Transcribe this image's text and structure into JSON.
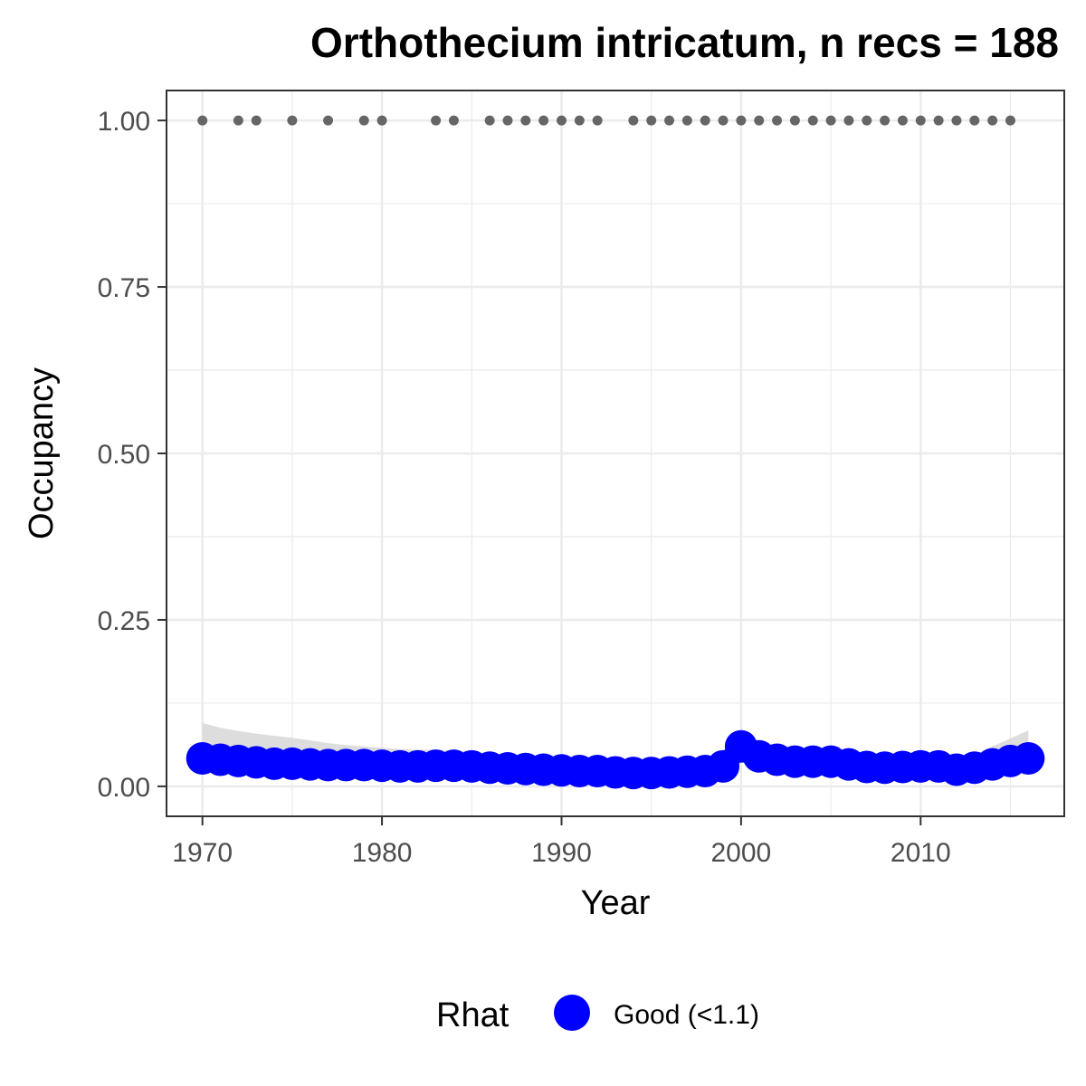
{
  "chart_data": {
    "type": "line",
    "title": "Orthothecium intricatum, n recs = 188",
    "xlabel": "Year",
    "ylabel": "Occupancy",
    "xlim": [
      1968,
      2018
    ],
    "ylim": [
      -0.045,
      1.045
    ],
    "x_ticks": [
      1970,
      1980,
      1990,
      2000,
      2010
    ],
    "x_tick_labels": [
      "1970",
      "1980",
      "1990",
      "2000",
      "2010"
    ],
    "y_ticks": [
      0,
      0.25,
      0.5,
      0.75,
      1.0
    ],
    "y_tick_labels": [
      "0.00",
      "0.25",
      "0.50",
      "0.75",
      "1.00"
    ],
    "grid": true,
    "legend": {
      "title": "Rhat",
      "position": "bottom",
      "entries": [
        {
          "label": "Good (<1.1)",
          "color": "#0000ff"
        }
      ]
    },
    "colors": {
      "series": "#0000ff",
      "ribbon": "#d9d9d9",
      "records": "#666666",
      "grid": "#ebebeb",
      "panel_border": "#333333"
    },
    "record_years": [
      1970,
      1972,
      1973,
      1975,
      1977,
      1979,
      1980,
      1983,
      1984,
      1986,
      1987,
      1988,
      1989,
      1990,
      1991,
      1992,
      1994,
      1995,
      1996,
      1997,
      1998,
      1999,
      2000,
      2001,
      2002,
      2003,
      2004,
      2005,
      2006,
      2007,
      2008,
      2009,
      2010,
      2011,
      2012,
      2013,
      2014,
      2015
    ],
    "record_value": 1.0,
    "series": [
      {
        "name": "Good (<1.1)",
        "x": [
          1970,
          1971,
          1972,
          1973,
          1974,
          1975,
          1976,
          1977,
          1978,
          1979,
          1980,
          1981,
          1982,
          1983,
          1984,
          1985,
          1986,
          1987,
          1988,
          1989,
          1990,
          1991,
          1992,
          1993,
          1994,
          1995,
          1996,
          1997,
          1998,
          1999,
          2000,
          2001,
          2002,
          2003,
          2004,
          2005,
          2006,
          2007,
          2008,
          2009,
          2010,
          2011,
          2012,
          2013,
          2014,
          2015,
          2016
        ],
        "values": [
          0.042,
          0.04,
          0.038,
          0.036,
          0.034,
          0.034,
          0.033,
          0.032,
          0.032,
          0.032,
          0.031,
          0.03,
          0.03,
          0.031,
          0.031,
          0.03,
          0.028,
          0.027,
          0.026,
          0.025,
          0.024,
          0.023,
          0.023,
          0.021,
          0.02,
          0.02,
          0.021,
          0.022,
          0.023,
          0.03,
          0.06,
          0.045,
          0.04,
          0.037,
          0.037,
          0.037,
          0.033,
          0.029,
          0.028,
          0.029,
          0.03,
          0.03,
          0.025,
          0.028,
          0.033,
          0.038,
          0.042
        ],
        "ci_lower": [
          0.022,
          0.022,
          0.021,
          0.021,
          0.02,
          0.02,
          0.02,
          0.02,
          0.019,
          0.019,
          0.019,
          0.019,
          0.019,
          0.018,
          0.018,
          0.018,
          0.017,
          0.016,
          0.016,
          0.015,
          0.015,
          0.014,
          0.014,
          0.013,
          0.013,
          0.013,
          0.013,
          0.014,
          0.015,
          0.02,
          0.045,
          0.032,
          0.027,
          0.025,
          0.025,
          0.025,
          0.022,
          0.019,
          0.018,
          0.018,
          0.019,
          0.019,
          0.016,
          0.018,
          0.02,
          0.022,
          0.024
        ],
        "ci_upper": [
          0.095,
          0.088,
          0.083,
          0.079,
          0.076,
          0.073,
          0.069,
          0.065,
          0.062,
          0.06,
          0.058,
          0.056,
          0.055,
          0.055,
          0.054,
          0.052,
          0.05,
          0.048,
          0.046,
          0.044,
          0.043,
          0.042,
          0.041,
          0.04,
          0.039,
          0.039,
          0.04,
          0.041,
          0.043,
          0.05,
          0.075,
          0.062,
          0.055,
          0.052,
          0.051,
          0.05,
          0.047,
          0.044,
          0.043,
          0.043,
          0.044,
          0.045,
          0.042,
          0.048,
          0.06,
          0.072,
          0.084
        ]
      }
    ]
  }
}
